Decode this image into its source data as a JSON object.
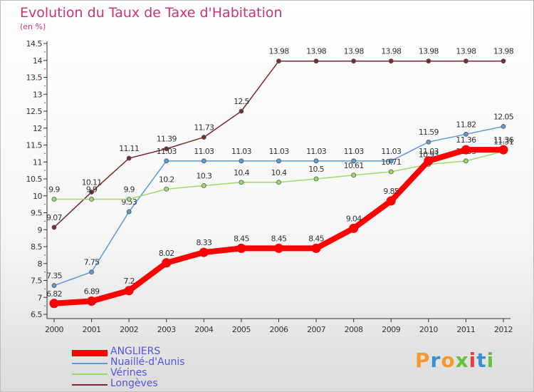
{
  "title": "Evolution du Taux de Taxe d'Habitation",
  "subtitle": "(en %)",
  "brand": {
    "text": "Proxiti",
    "colors": [
      "#f29a2e",
      "#3b8fd6",
      "#f29a2e",
      "#6abf3b",
      "#e8413a",
      "#3b8fd6",
      "#6abf3b"
    ]
  },
  "chart_data": {
    "type": "line",
    "x": [
      "2000",
      "2001",
      "2002",
      "2003",
      "2004",
      "2005",
      "2006",
      "2007",
      "2008",
      "2009",
      "2010",
      "2011",
      "2012"
    ],
    "ylim": [
      6.5,
      14.5
    ],
    "yticks": [
      "6.5",
      "7",
      "7.5",
      "8",
      "8.5",
      "9",
      "9.5",
      "10",
      "10.5",
      "11",
      "11.5",
      "12",
      "12.5",
      "13",
      "13.5",
      "14",
      "14.5"
    ],
    "grid": false,
    "legend": "bottom-left",
    "series": [
      {
        "name": "Longèves",
        "color": "#7a2a2a",
        "values": [
          9.07,
          10.11,
          11.11,
          11.39,
          11.73,
          12.5,
          13.98,
          13.98,
          13.98,
          13.98,
          13.98,
          13.98,
          13.98
        ],
        "labels": [
          "9.07",
          "10.11",
          "11.11",
          "11.39",
          "11.73",
          "12.5",
          "13.98",
          "13.98",
          "13.98",
          "13.98",
          "13.98",
          "13.98",
          "13.98"
        ]
      },
      {
        "name": "Nuaillé-d'Aunis",
        "color": "#5b9bd5",
        "values": [
          7.35,
          7.75,
          9.53,
          11.03,
          11.03,
          11.03,
          11.03,
          11.03,
          11.03,
          11.03,
          11.59,
          11.82,
          12.05
        ],
        "labels": [
          "7.35",
          "7.75",
          "9.53",
          "11.03",
          "11.03",
          "11.03",
          "11.03",
          "11.03",
          "11.03",
          "11.03",
          "11.59",
          "11.82",
          "12.05"
        ]
      },
      {
        "name": "Vérines",
        "color": "#99dd66",
        "values": [
          9.9,
          9.9,
          9.9,
          10.2,
          10.3,
          10.4,
          10.4,
          10.5,
          10.61,
          10.71,
          10.93,
          11.03,
          11.31
        ],
        "labels": [
          "9.9",
          "9.9",
          "9.9",
          "10.2",
          "10.3",
          "10.4",
          "10.4",
          "10.5",
          "10.61",
          "10.71",
          "10.93",
          "11.03",
          "11.31"
        ]
      },
      {
        "name": "ANGLIERS",
        "color": "#ff0000",
        "values": [
          6.82,
          6.89,
          7.2,
          8.02,
          8.33,
          8.45,
          8.45,
          8.45,
          9.04,
          9.85,
          11.03,
          11.36,
          11.36
        ],
        "labels": [
          "6.82",
          "6.89",
          "7.2",
          "8.02",
          "8.33",
          "8.45",
          "8.45",
          "8.45",
          "9.04",
          "9.85",
          "11.03",
          "11.36",
          "11.36"
        ]
      }
    ],
    "legend_order": [
      "ANGLIERS",
      "Nuaillé-d'Aunis",
      "Vérines",
      "Longèves"
    ]
  }
}
